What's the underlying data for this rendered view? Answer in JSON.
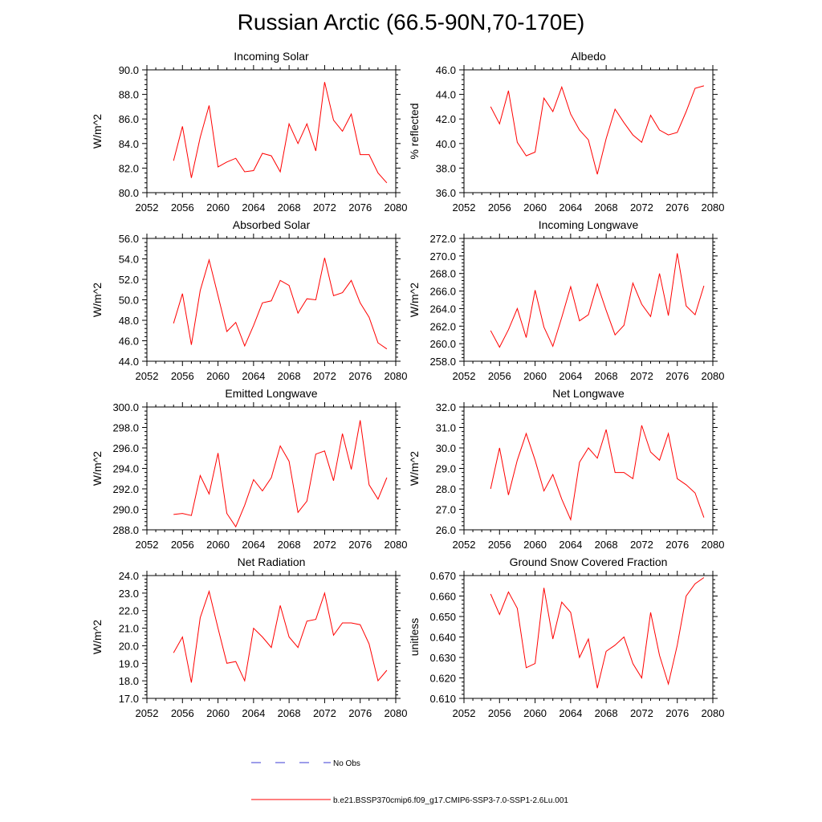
{
  "page_title": "Russian Arctic (66.5-90N,70-170E)",
  "legend": {
    "entries": [
      {
        "label": "No Obs",
        "color": "#3b3bd6",
        "style": "dashed"
      },
      {
        "label": "b.e21.BSSP370cmip6.f09_g17.CMIP6-SSP3-7.0-SSP1-2.6Lu.001",
        "color": "#ff0000",
        "style": "solid"
      }
    ]
  },
  "chart_data": [
    {
      "type": "line",
      "title": "Incoming Solar",
      "ylabel": "W/m^2",
      "xlabel": "",
      "xlim": [
        2052,
        2080
      ],
      "ylim": [
        80,
        90
      ],
      "xticks": [
        2052,
        2056,
        2060,
        2064,
        2068,
        2072,
        2076,
        2080
      ],
      "yticks": [
        "80.0",
        "82.0",
        "84.0",
        "86.0",
        "88.0",
        "90.0"
      ],
      "x": [
        2055,
        2056,
        2057,
        2058,
        2059,
        2060,
        2061,
        2062,
        2063,
        2064,
        2065,
        2066,
        2067,
        2068,
        2069,
        2070,
        2071,
        2072,
        2073,
        2074,
        2075,
        2076,
        2077,
        2078,
        2079
      ],
      "series": [
        {
          "values": [
            82.6,
            85.4,
            81.2,
            84.5,
            87.1,
            82.1,
            82.5,
            82.8,
            81.7,
            81.8,
            83.2,
            83.0,
            81.7,
            85.6,
            84.0,
            85.6,
            83.4,
            89.0,
            85.9,
            85.0,
            86.4,
            83.1,
            83.1,
            81.6,
            80.8
          ]
        }
      ]
    },
    {
      "type": "line",
      "title": "Albedo",
      "ylabel": "% reflected",
      "xlabel": "",
      "xlim": [
        2052,
        2080
      ],
      "ylim": [
        36,
        46
      ],
      "xticks": [
        2052,
        2056,
        2060,
        2064,
        2068,
        2072,
        2076,
        2080
      ],
      "yticks": [
        "36.0",
        "38.0",
        "40.0",
        "42.0",
        "44.0",
        "46.0"
      ],
      "x": [
        2055,
        2056,
        2057,
        2058,
        2059,
        2060,
        2061,
        2062,
        2063,
        2064,
        2065,
        2066,
        2067,
        2068,
        2069,
        2070,
        2071,
        2072,
        2073,
        2074,
        2075,
        2076,
        2077,
        2078,
        2079
      ],
      "series": [
        {
          "values": [
            43.0,
            41.6,
            44.3,
            40.1,
            39.0,
            39.3,
            43.7,
            42.6,
            44.6,
            42.4,
            41.1,
            40.3,
            37.5,
            40.4,
            42.8,
            41.7,
            40.7,
            40.1,
            42.3,
            41.1,
            40.7,
            40.9,
            42.6,
            44.5,
            44.7
          ]
        }
      ]
    },
    {
      "type": "line",
      "title": "Absorbed Solar",
      "ylabel": "W/m^2",
      "xlabel": "",
      "xlim": [
        2052,
        2080
      ],
      "ylim": [
        44,
        56
      ],
      "xticks": [
        2052,
        2056,
        2060,
        2064,
        2068,
        2072,
        2076,
        2080
      ],
      "yticks": [
        "44.0",
        "46.0",
        "48.0",
        "50.0",
        "52.0",
        "54.0",
        "56.0"
      ],
      "x": [
        2055,
        2056,
        2057,
        2058,
        2059,
        2060,
        2061,
        2062,
        2063,
        2064,
        2065,
        2066,
        2067,
        2068,
        2069,
        2070,
        2071,
        2072,
        2073,
        2074,
        2075,
        2076,
        2077,
        2078,
        2079
      ],
      "series": [
        {
          "values": [
            47.7,
            50.6,
            45.6,
            50.9,
            53.9,
            50.4,
            46.9,
            47.8,
            45.5,
            47.5,
            49.7,
            49.9,
            51.9,
            51.4,
            48.7,
            50.1,
            50.0,
            54.1,
            50.4,
            50.7,
            51.9,
            49.7,
            48.3,
            45.8,
            45.2
          ]
        }
      ]
    },
    {
      "type": "line",
      "title": "Incoming Longwave",
      "ylabel": "W/m^2",
      "xlabel": "",
      "xlim": [
        2052,
        2080
      ],
      "ylim": [
        258,
        272
      ],
      "xticks": [
        2052,
        2056,
        2060,
        2064,
        2068,
        2072,
        2076,
        2080
      ],
      "yticks": [
        "258.0",
        "260.0",
        "262.0",
        "264.0",
        "266.0",
        "268.0",
        "270.0",
        "272.0"
      ],
      "x": [
        2055,
        2056,
        2057,
        2058,
        2059,
        2060,
        2061,
        2062,
        2063,
        2064,
        2065,
        2066,
        2067,
        2068,
        2069,
        2070,
        2071,
        2072,
        2073,
        2074,
        2075,
        2076,
        2077,
        2078,
        2079
      ],
      "series": [
        {
          "values": [
            261.5,
            259.6,
            261.6,
            264.0,
            260.7,
            266.1,
            261.9,
            259.7,
            263.0,
            266.5,
            262.6,
            263.3,
            266.8,
            263.8,
            261.0,
            262.1,
            266.9,
            264.5,
            263.1,
            268.0,
            263.2,
            270.3,
            264.3,
            263.3,
            266.6
          ]
        }
      ]
    },
    {
      "type": "line",
      "title": "Emitted Longwave",
      "ylabel": "W/m^2",
      "xlabel": "",
      "xlim": [
        2052,
        2080
      ],
      "ylim": [
        288,
        300
      ],
      "xticks": [
        2052,
        2056,
        2060,
        2064,
        2068,
        2072,
        2076,
        2080
      ],
      "yticks": [
        "288.0",
        "290.0",
        "292.0",
        "294.0",
        "296.0",
        "298.0",
        "300.0"
      ],
      "x": [
        2055,
        2056,
        2057,
        2058,
        2059,
        2060,
        2061,
        2062,
        2063,
        2064,
        2065,
        2066,
        2067,
        2068,
        2069,
        2070,
        2071,
        2072,
        2073,
        2074,
        2075,
        2076,
        2077,
        2078,
        2079
      ],
      "series": [
        {
          "values": [
            289.5,
            289.6,
            289.4,
            293.3,
            291.5,
            295.5,
            289.6,
            288.3,
            290.4,
            292.9,
            291.8,
            293.1,
            296.2,
            294.7,
            289.7,
            290.8,
            295.4,
            295.7,
            292.8,
            297.4,
            293.9,
            298.7,
            292.4,
            291.0,
            293.1
          ]
        }
      ]
    },
    {
      "type": "line",
      "title": "Net Longwave",
      "ylabel": "W/m^2",
      "xlabel": "",
      "xlim": [
        2052,
        2080
      ],
      "ylim": [
        26,
        32
      ],
      "xticks": [
        2052,
        2056,
        2060,
        2064,
        2068,
        2072,
        2076,
        2080
      ],
      "yticks": [
        "26.0",
        "27.0",
        "28.0",
        "29.0",
        "30.0",
        "31.0",
        "32.0"
      ],
      "x": [
        2055,
        2056,
        2057,
        2058,
        2059,
        2060,
        2061,
        2062,
        2063,
        2064,
        2065,
        2066,
        2067,
        2068,
        2069,
        2070,
        2071,
        2072,
        2073,
        2074,
        2075,
        2076,
        2077,
        2078,
        2079
      ],
      "series": [
        {
          "values": [
            28.0,
            30.0,
            27.7,
            29.4,
            30.7,
            29.4,
            27.9,
            28.7,
            27.5,
            26.5,
            29.3,
            30.0,
            29.5,
            30.9,
            28.8,
            28.8,
            28.5,
            31.1,
            29.8,
            29.4,
            30.7,
            28.5,
            28.2,
            27.8,
            26.6
          ]
        }
      ]
    },
    {
      "type": "line",
      "title": "Net Radiation",
      "ylabel": "W/m^2",
      "xlabel": "",
      "xlim": [
        2052,
        2080
      ],
      "ylim": [
        17,
        24
      ],
      "xticks": [
        2052,
        2056,
        2060,
        2064,
        2068,
        2072,
        2076,
        2080
      ],
      "yticks": [
        "17.0",
        "18.0",
        "19.0",
        "20.0",
        "21.0",
        "22.0",
        "23.0",
        "24.0"
      ],
      "x": [
        2055,
        2056,
        2057,
        2058,
        2059,
        2060,
        2061,
        2062,
        2063,
        2064,
        2065,
        2066,
        2067,
        2068,
        2069,
        2070,
        2071,
        2072,
        2073,
        2074,
        2075,
        2076,
        2077,
        2078,
        2079
      ],
      "series": [
        {
          "values": [
            19.6,
            20.5,
            17.9,
            21.6,
            23.1,
            21.0,
            19.0,
            19.1,
            18.0,
            21.0,
            20.5,
            19.9,
            22.3,
            20.5,
            19.9,
            21.4,
            21.5,
            23.0,
            20.6,
            21.3,
            21.3,
            21.2,
            20.1,
            18.0,
            18.6
          ]
        }
      ]
    },
    {
      "type": "line",
      "title": "Ground Snow Covered Fraction",
      "ylabel": "unitless",
      "xlabel": "",
      "xlim": [
        2052,
        2080
      ],
      "ylim": [
        0.61,
        0.67
      ],
      "xticks": [
        2052,
        2056,
        2060,
        2064,
        2068,
        2072,
        2076,
        2080
      ],
      "yticks": [
        "0.610",
        "0.620",
        "0.630",
        "0.640",
        "0.650",
        "0.660",
        "0.670"
      ],
      "x": [
        2055,
        2056,
        2057,
        2058,
        2059,
        2060,
        2061,
        2062,
        2063,
        2064,
        2065,
        2066,
        2067,
        2068,
        2069,
        2070,
        2071,
        2072,
        2073,
        2074,
        2075,
        2076,
        2077,
        2078,
        2079
      ],
      "series": [
        {
          "values": [
            0.661,
            0.651,
            0.662,
            0.654,
            0.625,
            0.627,
            0.664,
            0.639,
            0.657,
            0.652,
            0.63,
            0.639,
            0.615,
            0.633,
            0.636,
            0.64,
            0.627,
            0.62,
            0.652,
            0.631,
            0.617,
            0.636,
            0.66,
            0.666,
            0.669
          ]
        }
      ]
    }
  ]
}
